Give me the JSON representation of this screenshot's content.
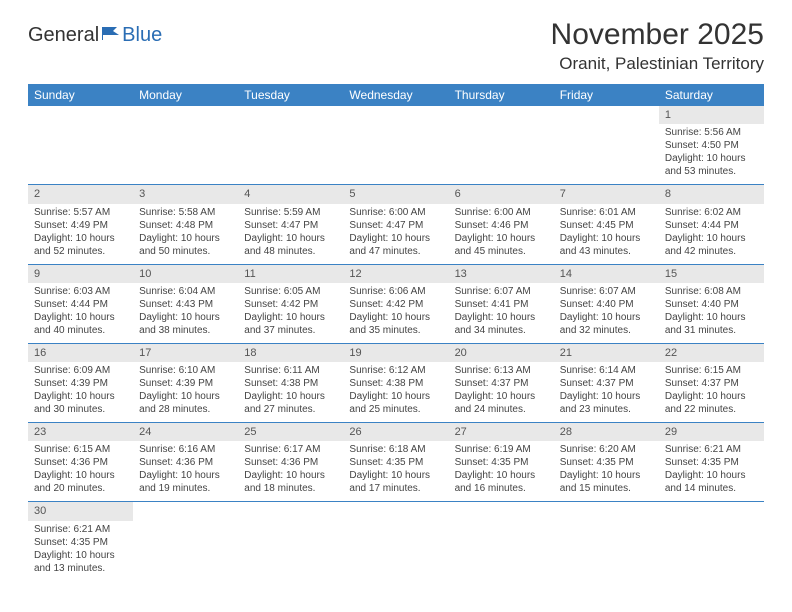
{
  "logo": {
    "part1": "General",
    "part2": "Blue"
  },
  "title": "November 2025",
  "location": "Oranit, Palestinian Territory",
  "colors": {
    "header_bg": "#3b82c4",
    "header_text": "#ffffff",
    "daynum_bg": "#e8e8e8",
    "row_border": "#3b82c4",
    "text": "#333333",
    "logo_accent": "#2a6db4"
  },
  "typography": {
    "title_fontsize": 30,
    "location_fontsize": 17,
    "dayheader_fontsize": 12,
    "body_fontsize": 10
  },
  "day_headers": [
    "Sunday",
    "Monday",
    "Tuesday",
    "Wednesday",
    "Thursday",
    "Friday",
    "Saturday"
  ],
  "weeks": [
    [
      null,
      null,
      null,
      null,
      null,
      null,
      {
        "n": "1",
        "sr": "Sunrise: 5:56 AM",
        "ss": "Sunset: 4:50 PM",
        "dl": "Daylight: 10 hours and 53 minutes."
      }
    ],
    [
      {
        "n": "2",
        "sr": "Sunrise: 5:57 AM",
        "ss": "Sunset: 4:49 PM",
        "dl": "Daylight: 10 hours and 52 minutes."
      },
      {
        "n": "3",
        "sr": "Sunrise: 5:58 AM",
        "ss": "Sunset: 4:48 PM",
        "dl": "Daylight: 10 hours and 50 minutes."
      },
      {
        "n": "4",
        "sr": "Sunrise: 5:59 AM",
        "ss": "Sunset: 4:47 PM",
        "dl": "Daylight: 10 hours and 48 minutes."
      },
      {
        "n": "5",
        "sr": "Sunrise: 6:00 AM",
        "ss": "Sunset: 4:47 PM",
        "dl": "Daylight: 10 hours and 47 minutes."
      },
      {
        "n": "6",
        "sr": "Sunrise: 6:00 AM",
        "ss": "Sunset: 4:46 PM",
        "dl": "Daylight: 10 hours and 45 minutes."
      },
      {
        "n": "7",
        "sr": "Sunrise: 6:01 AM",
        "ss": "Sunset: 4:45 PM",
        "dl": "Daylight: 10 hours and 43 minutes."
      },
      {
        "n": "8",
        "sr": "Sunrise: 6:02 AM",
        "ss": "Sunset: 4:44 PM",
        "dl": "Daylight: 10 hours and 42 minutes."
      }
    ],
    [
      {
        "n": "9",
        "sr": "Sunrise: 6:03 AM",
        "ss": "Sunset: 4:44 PM",
        "dl": "Daylight: 10 hours and 40 minutes."
      },
      {
        "n": "10",
        "sr": "Sunrise: 6:04 AM",
        "ss": "Sunset: 4:43 PM",
        "dl": "Daylight: 10 hours and 38 minutes."
      },
      {
        "n": "11",
        "sr": "Sunrise: 6:05 AM",
        "ss": "Sunset: 4:42 PM",
        "dl": "Daylight: 10 hours and 37 minutes."
      },
      {
        "n": "12",
        "sr": "Sunrise: 6:06 AM",
        "ss": "Sunset: 4:42 PM",
        "dl": "Daylight: 10 hours and 35 minutes."
      },
      {
        "n": "13",
        "sr": "Sunrise: 6:07 AM",
        "ss": "Sunset: 4:41 PM",
        "dl": "Daylight: 10 hours and 34 minutes."
      },
      {
        "n": "14",
        "sr": "Sunrise: 6:07 AM",
        "ss": "Sunset: 4:40 PM",
        "dl": "Daylight: 10 hours and 32 minutes."
      },
      {
        "n": "15",
        "sr": "Sunrise: 6:08 AM",
        "ss": "Sunset: 4:40 PM",
        "dl": "Daylight: 10 hours and 31 minutes."
      }
    ],
    [
      {
        "n": "16",
        "sr": "Sunrise: 6:09 AM",
        "ss": "Sunset: 4:39 PM",
        "dl": "Daylight: 10 hours and 30 minutes."
      },
      {
        "n": "17",
        "sr": "Sunrise: 6:10 AM",
        "ss": "Sunset: 4:39 PM",
        "dl": "Daylight: 10 hours and 28 minutes."
      },
      {
        "n": "18",
        "sr": "Sunrise: 6:11 AM",
        "ss": "Sunset: 4:38 PM",
        "dl": "Daylight: 10 hours and 27 minutes."
      },
      {
        "n": "19",
        "sr": "Sunrise: 6:12 AM",
        "ss": "Sunset: 4:38 PM",
        "dl": "Daylight: 10 hours and 25 minutes."
      },
      {
        "n": "20",
        "sr": "Sunrise: 6:13 AM",
        "ss": "Sunset: 4:37 PM",
        "dl": "Daylight: 10 hours and 24 minutes."
      },
      {
        "n": "21",
        "sr": "Sunrise: 6:14 AM",
        "ss": "Sunset: 4:37 PM",
        "dl": "Daylight: 10 hours and 23 minutes."
      },
      {
        "n": "22",
        "sr": "Sunrise: 6:15 AM",
        "ss": "Sunset: 4:37 PM",
        "dl": "Daylight: 10 hours and 22 minutes."
      }
    ],
    [
      {
        "n": "23",
        "sr": "Sunrise: 6:15 AM",
        "ss": "Sunset: 4:36 PM",
        "dl": "Daylight: 10 hours and 20 minutes."
      },
      {
        "n": "24",
        "sr": "Sunrise: 6:16 AM",
        "ss": "Sunset: 4:36 PM",
        "dl": "Daylight: 10 hours and 19 minutes."
      },
      {
        "n": "25",
        "sr": "Sunrise: 6:17 AM",
        "ss": "Sunset: 4:36 PM",
        "dl": "Daylight: 10 hours and 18 minutes."
      },
      {
        "n": "26",
        "sr": "Sunrise: 6:18 AM",
        "ss": "Sunset: 4:35 PM",
        "dl": "Daylight: 10 hours and 17 minutes."
      },
      {
        "n": "27",
        "sr": "Sunrise: 6:19 AM",
        "ss": "Sunset: 4:35 PM",
        "dl": "Daylight: 10 hours and 16 minutes."
      },
      {
        "n": "28",
        "sr": "Sunrise: 6:20 AM",
        "ss": "Sunset: 4:35 PM",
        "dl": "Daylight: 10 hours and 15 minutes."
      },
      {
        "n": "29",
        "sr": "Sunrise: 6:21 AM",
        "ss": "Sunset: 4:35 PM",
        "dl": "Daylight: 10 hours and 14 minutes."
      }
    ],
    [
      {
        "n": "30",
        "sr": "Sunrise: 6:21 AM",
        "ss": "Sunset: 4:35 PM",
        "dl": "Daylight: 10 hours and 13 minutes."
      },
      null,
      null,
      null,
      null,
      null,
      null
    ]
  ]
}
